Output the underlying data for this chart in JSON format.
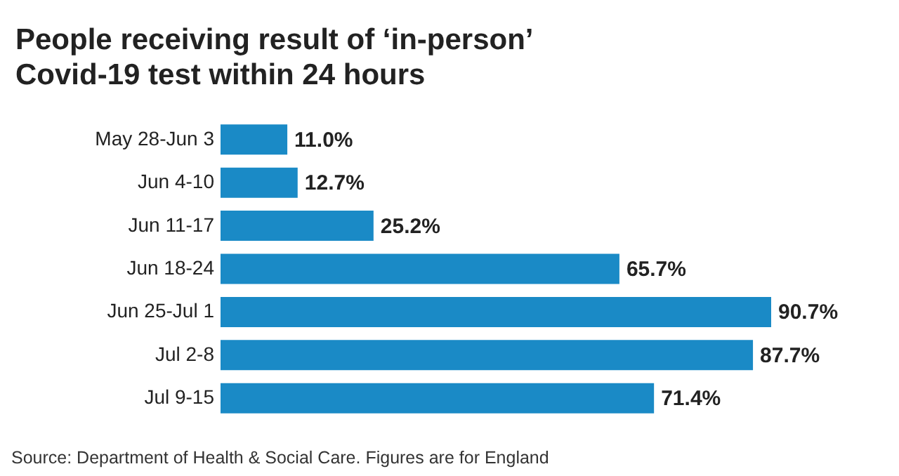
{
  "chart_data": {
    "type": "bar",
    "orientation": "horizontal",
    "title": "People receiving result of ‘in-person’ Covid-19 test within 24 hours",
    "categories": [
      "May 28-Jun 3",
      "Jun 4-10",
      "Jun 11-17",
      "Jun 18-24",
      "Jun 25-Jul 1",
      "Jul 2-8",
      "Jul 9-15"
    ],
    "values": [
      11.0,
      12.7,
      25.2,
      65.7,
      90.7,
      87.7,
      71.4
    ],
    "value_labels": [
      "11.0%",
      "12.7%",
      "25.2%",
      "65.7%",
      "90.7%",
      "87.7%",
      "71.4%"
    ],
    "color": "#1a8ac6",
    "annotations": [
      "Source: Department of Health & Social Care. Figures are for England"
    ]
  }
}
